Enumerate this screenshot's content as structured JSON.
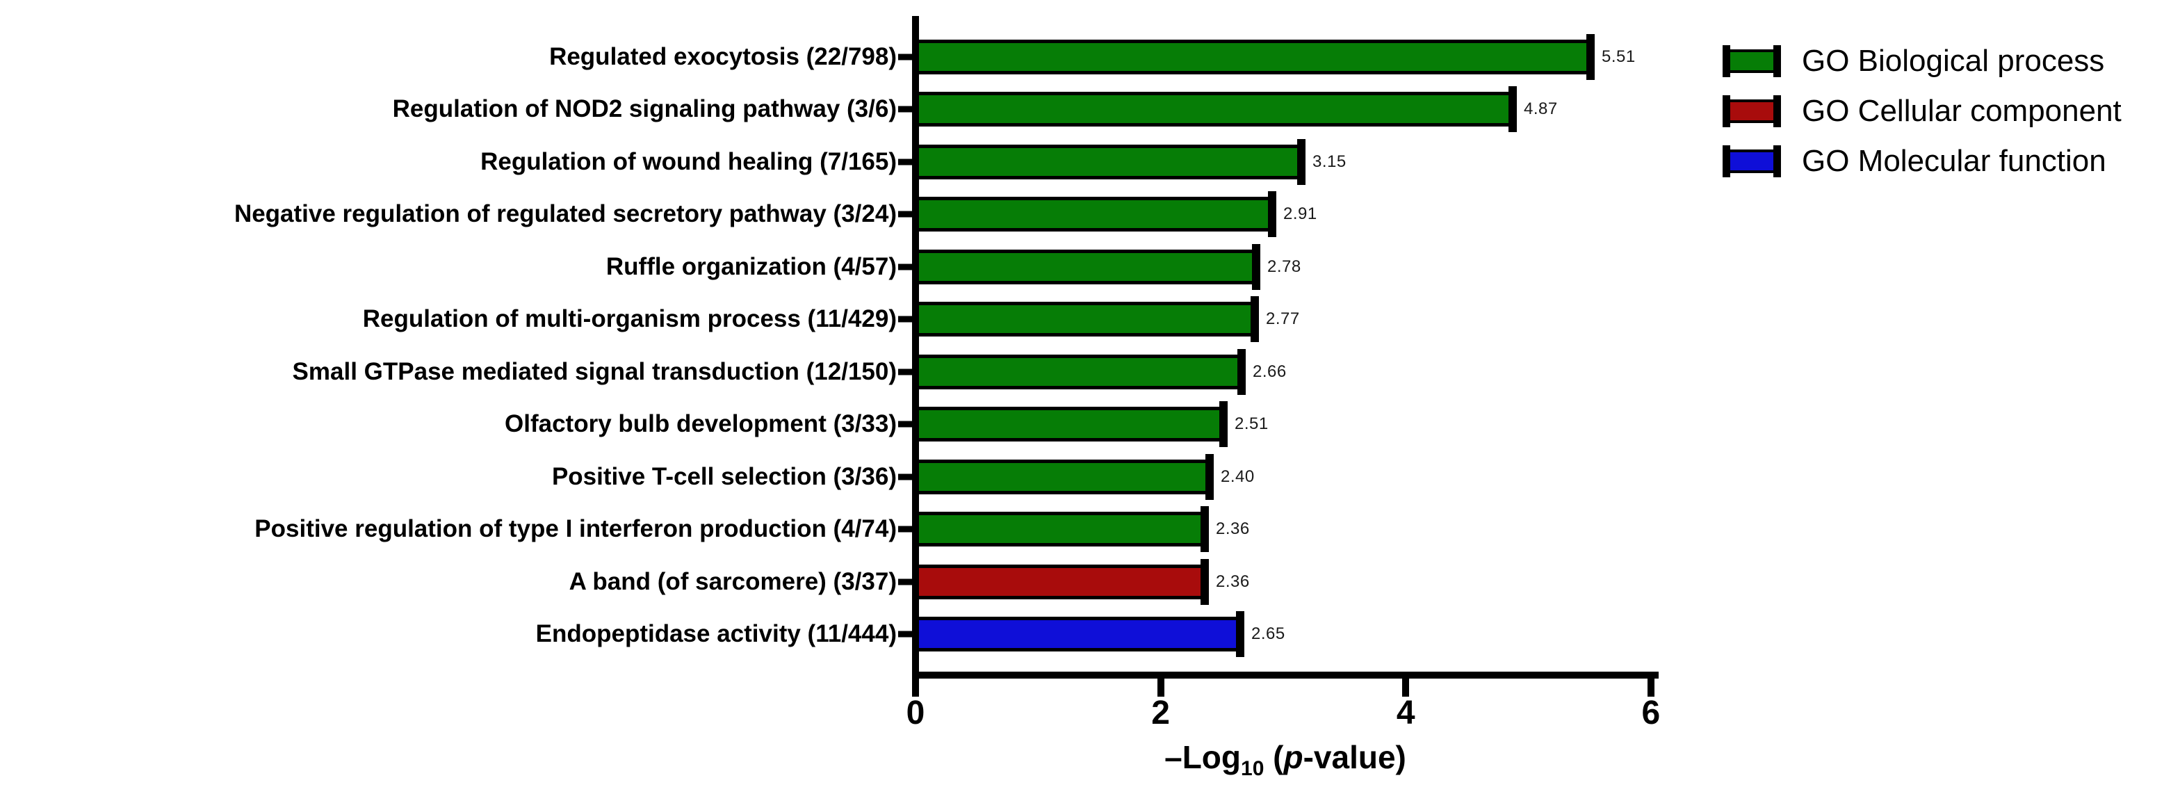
{
  "chart_data": {
    "type": "bar",
    "orientation": "horizontal",
    "title": "",
    "xlabel": "–Log10 (p-value)",
    "xlabel_parts": {
      "prefix": "–Log",
      "sub": "10",
      "open": " (",
      "p": "p",
      "rest": "-value)"
    },
    "xlim": [
      0,
      6
    ],
    "xticks": [
      "0",
      "2",
      "4",
      "6"
    ],
    "grid": false,
    "legend_position": "top-right",
    "colors": {
      "biological_process": "#067D06",
      "cellular_component": "#A80C0C",
      "molecular_function": "#0F0FD8"
    },
    "bars": [
      {
        "label": "Regulated exocytosis (22/798)",
        "value": 5.51,
        "display": "5.51",
        "group": "biological_process"
      },
      {
        "label": "Regulation of NOD2 signaling pathway (3/6)",
        "value": 4.87,
        "display": "4.87",
        "group": "biological_process"
      },
      {
        "label": "Regulation of wound healing (7/165)",
        "value": 3.15,
        "display": "3.15",
        "group": "biological_process"
      },
      {
        "label": "Negative regulation of regulated secretory pathway (3/24)",
        "value": 2.91,
        "display": "2.91",
        "group": "biological_process"
      },
      {
        "label": "Ruffle organization (4/57)",
        "value": 2.78,
        "display": "2.78",
        "group": "biological_process"
      },
      {
        "label": "Regulation of multi-organism process (11/429)",
        "value": 2.77,
        "display": "2.77",
        "group": "biological_process"
      },
      {
        "label": "Small GTPase mediated signal transduction (12/150)",
        "value": 2.66,
        "display": "2.66",
        "group": "biological_process"
      },
      {
        "label": "Olfactory bulb development (3/33)",
        "value": 2.51,
        "display": "2.51",
        "group": "biological_process"
      },
      {
        "label": "Positive T-cell selection (3/36)",
        "value": 2.4,
        "display": "2.40",
        "group": "biological_process"
      },
      {
        "label": "Positive regulation of type I interferon production (4/74)",
        "value": 2.36,
        "display": "2.36",
        "group": "biological_process"
      },
      {
        "label": "A band (of sarcomere) (3/37)",
        "value": 2.36,
        "display": "2.36",
        "group": "cellular_component"
      },
      {
        "label": "Endopeptidase activity (11/444)",
        "value": 2.65,
        "display": "2.65",
        "group": "molecular_function"
      }
    ],
    "legend": [
      {
        "label": "GO Biological process",
        "color_key": "biological_process"
      },
      {
        "label": "GO Cellular component",
        "color_key": "cellular_component"
      },
      {
        "label": "GO Molecular function",
        "color_key": "molecular_function"
      }
    ]
  }
}
